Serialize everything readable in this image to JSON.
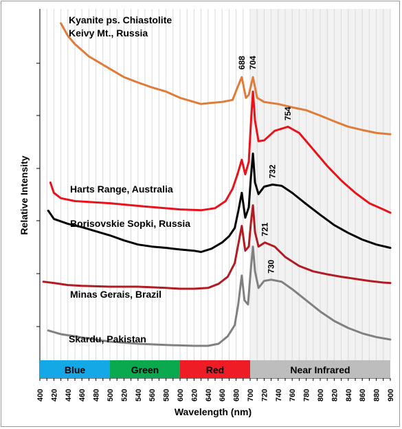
{
  "chart_data": {
    "type": "line",
    "xlabel": "Wavelength (nm)",
    "ylabel": "Relative Intensity",
    "xlim": [
      400,
      900
    ],
    "x_ticks": [
      "400",
      "420",
      "440",
      "460",
      "480",
      "500",
      "520",
      "540",
      "560",
      "580",
      "600",
      "620",
      "640",
      "660",
      "680",
      "700",
      "720",
      "740",
      "760",
      "780",
      "800",
      "820",
      "840",
      "860",
      "880",
      "900"
    ],
    "shaded_region": {
      "from": 700,
      "to": 900,
      "color": "#f2f2f2"
    },
    "bands": [
      {
        "label": "Blue",
        "from": 400,
        "to": 500,
        "color": "#15a8e6"
      },
      {
        "label": "Green",
        "from": 500,
        "to": 600,
        "color": "#0aa84f"
      },
      {
        "label": "Red",
        "from": 600,
        "to": 700,
        "color": "#ee1c25"
      },
      {
        "label": "Near Infrared",
        "from": 700,
        "to": 900,
        "color": "#bdbdbd"
      }
    ],
    "series": [
      {
        "name": "Kyanite ps. Chiastolite\nKeivy Mt., Russia",
        "label_lines": [
          "Kyanite ps. Chiastolite",
          "Keivy Mt., Russia"
        ],
        "color": "#e07b39",
        "points": [
          [
            430,
            7.85
          ],
          [
            440,
            7.55
          ],
          [
            450,
            7.35
          ],
          [
            460,
            7.2
          ],
          [
            470,
            7.05
          ],
          [
            480,
            6.95
          ],
          [
            490,
            6.85
          ],
          [
            500,
            6.75
          ],
          [
            520,
            6.55
          ],
          [
            540,
            6.42
          ],
          [
            560,
            6.3
          ],
          [
            580,
            6.2
          ],
          [
            600,
            6.05
          ],
          [
            620,
            5.95
          ],
          [
            630,
            5.9
          ],
          [
            640,
            5.92
          ],
          [
            660,
            5.95
          ],
          [
            675,
            6.0
          ],
          [
            682,
            6.3
          ],
          [
            688,
            6.55
          ],
          [
            694,
            6.05
          ],
          [
            698,
            6.12
          ],
          [
            704,
            6.55
          ],
          [
            710,
            6.05
          ],
          [
            720,
            5.95
          ],
          [
            740,
            5.9
          ],
          [
            760,
            5.82
          ],
          [
            780,
            5.75
          ],
          [
            800,
            5.62
          ],
          [
            820,
            5.48
          ],
          [
            840,
            5.35
          ],
          [
            860,
            5.27
          ],
          [
            880,
            5.2
          ],
          [
            900,
            5.17
          ]
        ]
      },
      {
        "name": "Harts Range, Australia",
        "color": "#e8131a",
        "points": [
          [
            415,
            4.0
          ],
          [
            420,
            3.75
          ],
          [
            430,
            3.62
          ],
          [
            450,
            3.55
          ],
          [
            500,
            3.5
          ],
          [
            550,
            3.42
          ],
          [
            600,
            3.35
          ],
          [
            630,
            3.33
          ],
          [
            650,
            3.38
          ],
          [
            665,
            3.55
          ],
          [
            675,
            3.85
          ],
          [
            682,
            4.2
          ],
          [
            688,
            4.55
          ],
          [
            693,
            4.2
          ],
          [
            698,
            4.5
          ],
          [
            701,
            5.4
          ],
          [
            704,
            6.2
          ],
          [
            707,
            5.5
          ],
          [
            712,
            5.0
          ],
          [
            720,
            5.02
          ],
          [
            735,
            5.25
          ],
          [
            754,
            5.35
          ],
          [
            770,
            5.2
          ],
          [
            790,
            4.8
          ],
          [
            810,
            4.4
          ],
          [
            830,
            4.05
          ],
          [
            850,
            3.75
          ],
          [
            870,
            3.5
          ],
          [
            890,
            3.35
          ],
          [
            900,
            3.27
          ]
        ]
      },
      {
        "name": "Borisovskie Sopki, Russia",
        "color": "#000000",
        "points": [
          [
            412,
            3.32
          ],
          [
            420,
            3.12
          ],
          [
            440,
            3.0
          ],
          [
            460,
            2.92
          ],
          [
            480,
            2.82
          ],
          [
            500,
            2.72
          ],
          [
            520,
            2.6
          ],
          [
            540,
            2.5
          ],
          [
            560,
            2.45
          ],
          [
            580,
            2.42
          ],
          [
            600,
            2.38
          ],
          [
            620,
            2.35
          ],
          [
            630,
            2.32
          ],
          [
            645,
            2.4
          ],
          [
            660,
            2.55
          ],
          [
            670,
            2.7
          ],
          [
            678,
            2.9
          ],
          [
            683,
            3.3
          ],
          [
            688,
            3.75
          ],
          [
            693,
            3.15
          ],
          [
            698,
            3.4
          ],
          [
            701,
            4.1
          ],
          [
            704,
            4.7
          ],
          [
            707,
            4.0
          ],
          [
            712,
            3.72
          ],
          [
            720,
            3.9
          ],
          [
            732,
            3.95
          ],
          [
            745,
            3.92
          ],
          [
            760,
            3.75
          ],
          [
            780,
            3.48
          ],
          [
            800,
            3.22
          ],
          [
            820,
            2.97
          ],
          [
            840,
            2.78
          ],
          [
            860,
            2.62
          ],
          [
            880,
            2.5
          ],
          [
            900,
            2.42
          ]
        ]
      },
      {
        "name": "Minas Gerais, Brazil",
        "color": "#b01c22",
        "points": [
          [
            405,
            1.6
          ],
          [
            420,
            1.57
          ],
          [
            440,
            1.52
          ],
          [
            460,
            1.5
          ],
          [
            500,
            1.48
          ],
          [
            540,
            1.48
          ],
          [
            580,
            1.45
          ],
          [
            600,
            1.43
          ],
          [
            620,
            1.43
          ],
          [
            640,
            1.45
          ],
          [
            655,
            1.55
          ],
          [
            668,
            1.72
          ],
          [
            678,
            2.05
          ],
          [
            683,
            2.5
          ],
          [
            688,
            2.95
          ],
          [
            693,
            2.35
          ],
          [
            698,
            2.45
          ],
          [
            701,
            3.0
          ],
          [
            704,
            3.45
          ],
          [
            707,
            2.8
          ],
          [
            712,
            2.45
          ],
          [
            721,
            2.55
          ],
          [
            735,
            2.45
          ],
          [
            750,
            2.2
          ],
          [
            770,
            1.98
          ],
          [
            790,
            1.85
          ],
          [
            810,
            1.78
          ],
          [
            830,
            1.72
          ],
          [
            850,
            1.67
          ],
          [
            870,
            1.62
          ],
          [
            890,
            1.58
          ],
          [
            900,
            1.57
          ]
        ]
      },
      {
        "name": "Skardu, Pakistan",
        "color": "#808080",
        "points": [
          [
            412,
            0.42
          ],
          [
            430,
            0.33
          ],
          [
            450,
            0.28
          ],
          [
            470,
            0.22
          ],
          [
            500,
            0.15
          ],
          [
            540,
            0.1
          ],
          [
            580,
            0.07
          ],
          [
            600,
            0.06
          ],
          [
            620,
            0.05
          ],
          [
            640,
            0.05
          ],
          [
            655,
            0.1
          ],
          [
            668,
            0.28
          ],
          [
            678,
            0.55
          ],
          [
            683,
            1.05
          ],
          [
            688,
            1.75
          ],
          [
            692,
            1.15
          ],
          [
            697,
            1.05
          ],
          [
            701,
            1.9
          ],
          [
            704,
            2.45
          ],
          [
            707,
            1.85
          ],
          [
            712,
            1.45
          ],
          [
            720,
            1.62
          ],
          [
            730,
            1.65
          ],
          [
            745,
            1.6
          ],
          [
            760,
            1.42
          ],
          [
            780,
            1.15
          ],
          [
            800,
            0.88
          ],
          [
            820,
            0.65
          ],
          [
            840,
            0.48
          ],
          [
            860,
            0.35
          ],
          [
            880,
            0.26
          ],
          [
            900,
            0.2
          ]
        ]
      }
    ],
    "annotations": [
      {
        "text": "688",
        "x": 688,
        "y": 6.6
      },
      {
        "text": "704",
        "x": 704,
        "y": 6.6
      },
      {
        "text": "754",
        "x": 754,
        "y": 5.4
      },
      {
        "text": "732",
        "x": 732,
        "y": 4.0
      },
      {
        "text": "721",
        "x": 721,
        "y": 2.6
      },
      {
        "text": "730",
        "x": 730,
        "y": 1.7
      }
    ]
  }
}
